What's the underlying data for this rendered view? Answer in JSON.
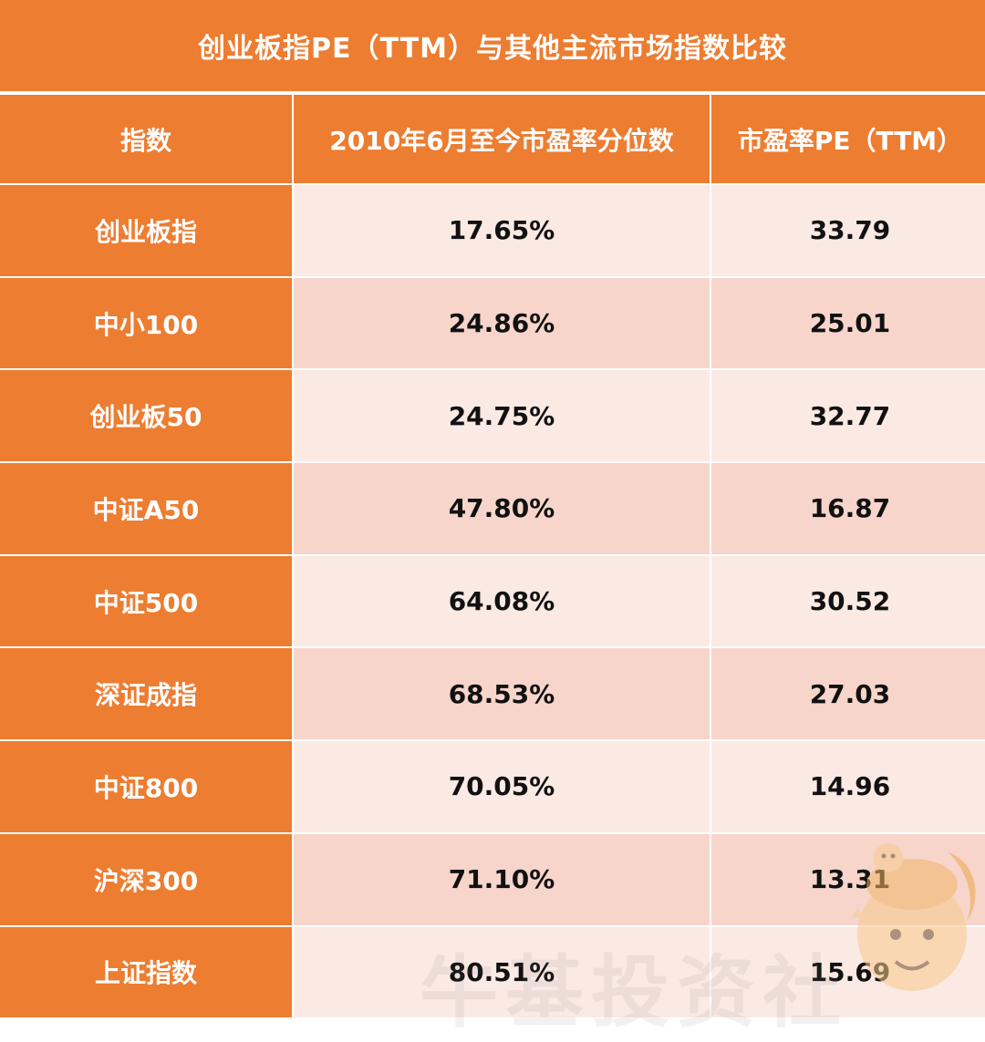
{
  "title": "创业板指PE（TTM）与其他主流市场指数比较",
  "headers": [
    "指数",
    "2010年6月至今市盈率分位数",
    "市盈率PE（TTM）"
  ],
  "rows": [
    {
      "index": "创业板指",
      "percentile": "17.65%",
      "pe": "33.79"
    },
    {
      "index": "中小100",
      "percentile": "24.86%",
      "pe": "25.01"
    },
    {
      "index": "创业板50",
      "percentile": "24.75%",
      "pe": "32.77"
    },
    {
      "index": "中证A50",
      "percentile": "47.80%",
      "pe": "16.87"
    },
    {
      "index": "中证500",
      "percentile": "64.08%",
      "pe": "30.52"
    },
    {
      "index": "深证成指",
      "percentile": "68.53%",
      "pe": "27.03"
    },
    {
      "index": "中证800",
      "percentile": "70.05%",
      "pe": "14.96"
    },
    {
      "index": "沪深300",
      "percentile": "71.10%",
      "pe": "13.31"
    },
    {
      "index": "上证指数",
      "percentile": "80.51%",
      "pe": "15.69"
    }
  ],
  "watermark": "牛基投资社",
  "colors": {
    "header": "#ED7D31",
    "row_light": "#FBE9E4",
    "row_dark": "#F7D5CB",
    "text_dark": "#111111",
    "text_light": "#FFFFFF"
  },
  "chart_data": {
    "type": "table",
    "title": "创业板指PE（TTM）与其他主流市场指数比较",
    "columns": [
      "指数",
      "2010年6月至今市盈率分位数",
      "市盈率PE（TTM）"
    ],
    "rows": [
      [
        "创业板指",
        "17.65%",
        33.79
      ],
      [
        "中小100",
        "24.86%",
        25.01
      ],
      [
        "创业板50",
        "24.75%",
        32.77
      ],
      [
        "中证A50",
        "47.80%",
        16.87
      ],
      [
        "中证500",
        "64.08%",
        30.52
      ],
      [
        "深证成指",
        "68.53%",
        27.03
      ],
      [
        "中证800",
        "70.05%",
        14.96
      ],
      [
        "沪深300",
        "71.10%",
        13.31
      ],
      [
        "上证指数",
        "80.51%",
        15.69
      ]
    ]
  }
}
